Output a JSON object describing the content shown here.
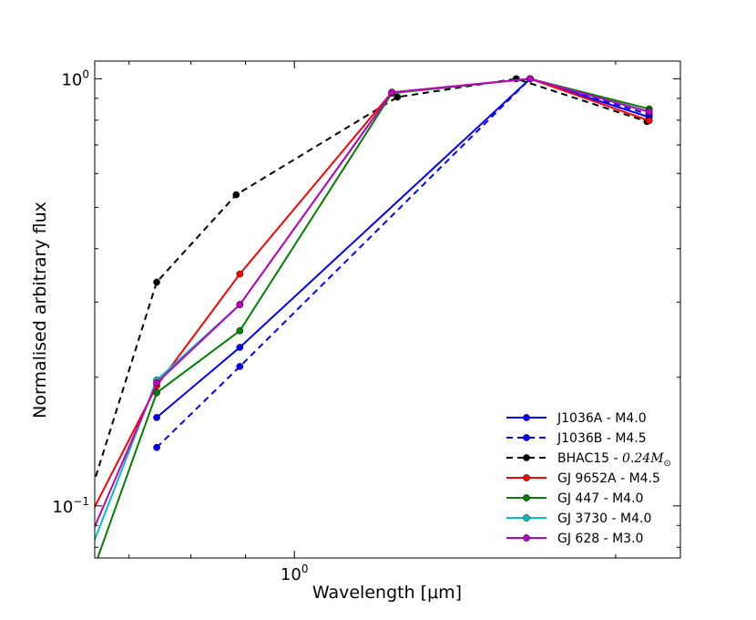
{
  "chart_data": {
    "type": "line",
    "title": "",
    "xlabel": "Wavelength [μm]",
    "ylabel": "Normalised arbitrary flux",
    "xscale": "log",
    "yscale": "log",
    "xlim": [
      0.65,
      2.3
    ],
    "ylim": [
      0.0755,
      1.1
    ],
    "x_tick_labels": [
      {
        "value": 1.0,
        "label": "10",
        "exp": "0"
      }
    ],
    "y_tick_labels": [
      {
        "value": 1.0,
        "label": "10",
        "exp": "0"
      },
      {
        "value": 0.1,
        "label": "10",
        "exp": "−1"
      }
    ],
    "grid": false,
    "legend_position": "lower-right",
    "series": [
      {
        "name": "J1036A - M4.0",
        "color": "#0000ff",
        "dashed": false,
        "x": [
          0.743,
          0.889,
          1.663,
          2.15
        ],
        "y": [
          0.161,
          0.235,
          1.0,
          0.813
        ]
      },
      {
        "name": "J1036B - M4.5",
        "color": "#0000ff",
        "dashed": true,
        "x": [
          0.743,
          0.889,
          1.663,
          2.15
        ],
        "y": [
          0.137,
          0.212,
          1.0,
          0.825
        ]
      },
      {
        "name": "BHAC15 - ",
        "math": "0.24M",
        "math_sub": "⊙",
        "color": "#000000",
        "dashed": true,
        "x": [
          0.62,
          0.743,
          0.882,
          1.249,
          1.614,
          2.14
        ],
        "y": [
          0.079,
          0.334,
          0.535,
          0.906,
          1.0,
          0.794
        ]
      },
      {
        "name": "GJ 9652A - M4.5",
        "color": "#ff0000",
        "dashed": false,
        "x": [
          0.62,
          0.743,
          0.889,
          1.234,
          1.663,
          2.15
        ],
        "y": [
          0.079,
          0.191,
          0.349,
          0.93,
          1.0,
          0.798
        ]
      },
      {
        "name": "GJ 447 - M4.0",
        "color": "#008000",
        "dashed": false,
        "x": [
          0.62,
          0.743,
          0.889,
          1.234,
          1.663,
          2.15
        ],
        "y": [
          0.052,
          0.184,
          0.257,
          0.925,
          1.0,
          0.85
        ]
      },
      {
        "name": "GJ 3730 - M4.0",
        "color": "#00bfbf",
        "dashed": false,
        "x": [
          0.62,
          0.743,
          0.889,
          1.234,
          1.663,
          2.15
        ],
        "y": [
          0.0615,
          0.197,
          0.296,
          0.929,
          1.0,
          0.837
        ]
      },
      {
        "name": "GJ 628 - M3.0",
        "color": "#bf00bf",
        "dashed": false,
        "x": [
          0.62,
          0.743,
          0.889,
          1.234,
          1.663,
          2.15
        ],
        "y": [
          0.068,
          0.194,
          0.296,
          0.929,
          1.0,
          0.837
        ]
      }
    ]
  }
}
